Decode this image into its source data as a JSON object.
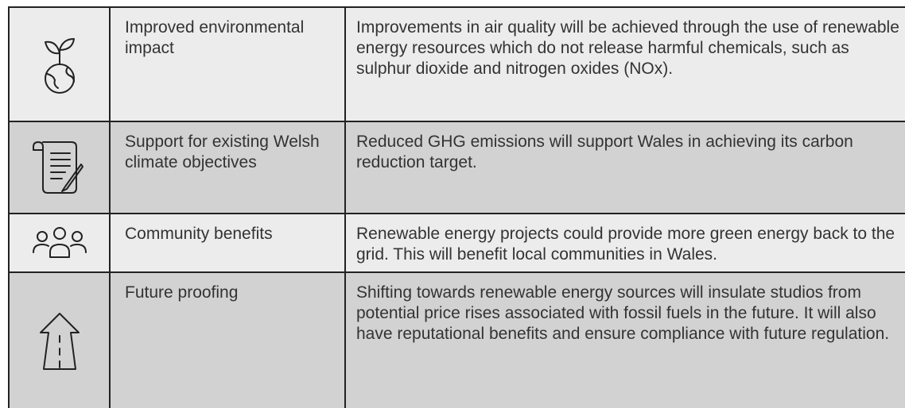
{
  "table": {
    "rows": [
      {
        "title": "Improved environmental impact",
        "description": "Improvements in air quality will be achieved through the use of renewable energy resources which do not release harmful chemicals, such as sulphur dioxide and nitrogen oxides (NOx)."
      },
      {
        "title": "Support for existing Welsh climate objectives",
        "description": "Reduced GHG emissions will support Wales in achieving its carbon reduction target."
      },
      {
        "title": "Community benefits",
        "description": "Renewable energy projects could provide more green energy back to the grid. This will benefit local communities in Wales."
      },
      {
        "title": "Future proofing",
        "description": "Shifting towards renewable energy sources will insulate studios from potential price rises associated with fossil fuels in the future. It will also have reputational benefits and ensure compliance with future regulation."
      }
    ]
  }
}
